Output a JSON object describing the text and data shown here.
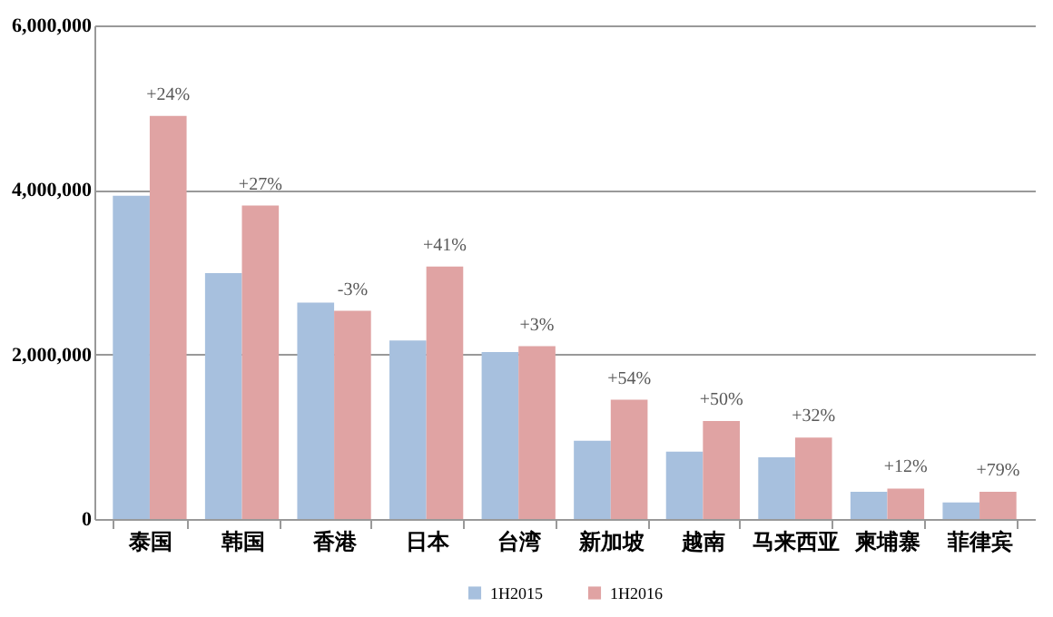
{
  "chart_data": {
    "type": "bar",
    "categories": [
      "泰国",
      "韩国",
      "香港",
      "日本",
      "台湾",
      "新加坡",
      "越南",
      "马来西亚",
      "柬埔寨",
      "菲律宾"
    ],
    "series": [
      {
        "name": "1H2015",
        "color": "#a7c0de",
        "values": [
          3930000,
          2990000,
          2630000,
          2170000,
          2030000,
          950000,
          820000,
          750000,
          330000,
          200000
        ]
      },
      {
        "name": "1H2016",
        "color": "#e0a3a3",
        "values": [
          4900000,
          3810000,
          2530000,
          3070000,
          2100000,
          1450000,
          1190000,
          990000,
          370000,
          330000
        ]
      }
    ],
    "ylim": [
      0,
      6000000
    ],
    "yticks": [
      0,
      {
        "value": 2000000,
        "label": "2,000,000"
      },
      {
        "value": 4000000,
        "label": "4,000,000"
      },
      {
        "value": 6000000,
        "label": "6,000,000"
      }
    ],
    "grid": "y",
    "legend": "bottom",
    "annotations": [
      {
        "text": "+24%",
        "x": "泰国",
        "y": 4900000
      },
      {
        "text": "+27%",
        "x": "韩国",
        "y": 3810000
      },
      {
        "text": "-3%",
        "x": "香港",
        "y": 2530000
      },
      {
        "text": "+41%",
        "x": "日本",
        "y": 3070000
      },
      {
        "text": "+3%",
        "x": "台湾",
        "y": 2100000
      },
      {
        "text": "+54%",
        "x": "新加坡",
        "y": 1450000
      },
      {
        "text": "+50%",
        "x": "越南",
        "y": 1190000
      },
      {
        "text": "+32%",
        "x": "马来西亚",
        "y": 990000
      },
      {
        "text": "+12%",
        "x": "柬埔寨",
        "y": 370000
      },
      {
        "text": "+79%",
        "x": "菲律宾",
        "y": 330000
      }
    ]
  }
}
